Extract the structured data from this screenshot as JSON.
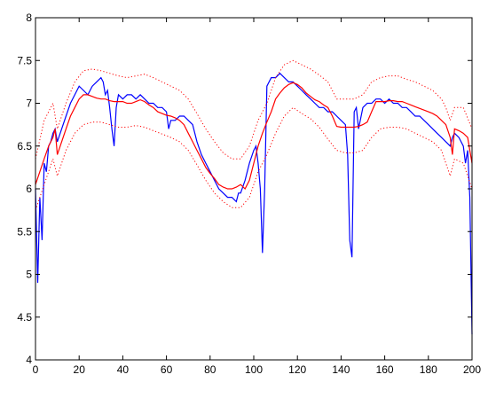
{
  "chart_data": {
    "type": "line",
    "title": "",
    "xlabel": "",
    "ylabel": "",
    "xlim": [
      0,
      200
    ],
    "ylim": [
      4,
      8
    ],
    "grid": false,
    "legend": "none",
    "x_ticks": [
      "0",
      "20",
      "40",
      "60",
      "80",
      "100",
      "120",
      "140",
      "160",
      "180",
      "200"
    ],
    "y_ticks": [
      "4",
      "4.5",
      "5",
      "5.5",
      "6",
      "6.5",
      "7",
      "7.5",
      "8"
    ],
    "series": [
      {
        "style": "solid",
        "color": "#0000ff",
        "x": [
          0,
          1,
          2,
          3,
          4,
          5,
          6,
          7,
          8,
          9,
          10,
          12,
          14,
          16,
          18,
          20,
          22,
          24,
          26,
          28,
          30,
          31,
          32,
          33,
          34,
          35,
          36,
          37,
          38,
          40,
          42,
          44,
          46,
          48,
          50,
          52,
          54,
          56,
          58,
          60,
          61,
          62,
          64,
          66,
          68,
          70,
          72,
          74,
          76,
          78,
          80,
          82,
          84,
          86,
          88,
          90,
          92,
          93,
          94,
          96,
          98,
          100,
          101,
          102,
          103,
          104,
          105,
          106,
          108,
          110,
          112,
          114,
          116,
          118,
          120,
          122,
          124,
          126,
          128,
          130,
          132,
          134,
          136,
          138,
          140,
          142,
          143,
          144,
          145,
          146,
          147,
          148,
          150,
          152,
          154,
          156,
          158,
          160,
          162,
          164,
          166,
          168,
          170,
          172,
          174,
          176,
          178,
          180,
          182,
          184,
          186,
          188,
          190,
          191,
          192,
          194,
          196,
          197,
          198,
          199,
          200
        ],
        "y": [
          6.0,
          4.9,
          5.9,
          5.4,
          6.3,
          6.2,
          6.5,
          6.55,
          6.65,
          6.7,
          6.55,
          6.7,
          6.85,
          7.0,
          7.1,
          7.2,
          7.15,
          7.1,
          7.2,
          7.25,
          7.3,
          7.25,
          7.1,
          7.15,
          6.95,
          6.7,
          6.5,
          6.95,
          7.1,
          7.05,
          7.1,
          7.1,
          7.05,
          7.1,
          7.05,
          7.0,
          7.0,
          6.95,
          6.95,
          6.9,
          6.7,
          6.8,
          6.8,
          6.85,
          6.85,
          6.8,
          6.75,
          6.55,
          6.4,
          6.3,
          6.2,
          6.1,
          6.0,
          5.95,
          5.9,
          5.9,
          5.85,
          5.95,
          5.95,
          6.1,
          6.3,
          6.45,
          6.5,
          6.3,
          6.0,
          5.25,
          6.0,
          7.2,
          7.3,
          7.3,
          7.35,
          7.3,
          7.25,
          7.25,
          7.2,
          7.15,
          7.1,
          7.05,
          7.0,
          6.95,
          6.95,
          6.9,
          6.9,
          6.85,
          6.8,
          6.75,
          6.4,
          5.4,
          5.2,
          6.9,
          6.95,
          6.7,
          6.95,
          7.0,
          7.0,
          7.05,
          7.05,
          7.0,
          7.05,
          7.0,
          7.0,
          6.95,
          6.95,
          6.9,
          6.85,
          6.85,
          6.8,
          6.75,
          6.7,
          6.65,
          6.6,
          6.55,
          6.5,
          6.6,
          6.65,
          6.6,
          6.5,
          6.3,
          6.45,
          5.9,
          4.3
        ]
      },
      {
        "style": "solid",
        "color": "#ff0000",
        "x": [
          0,
          2,
          4,
          6,
          8,
          9,
          10,
          12,
          14,
          16,
          18,
          20,
          22,
          24,
          26,
          28,
          30,
          32,
          34,
          36,
          38,
          40,
          42,
          44,
          46,
          48,
          50,
          52,
          54,
          56,
          58,
          60,
          62,
          64,
          66,
          68,
          70,
          72,
          74,
          76,
          78,
          80,
          82,
          84,
          86,
          88,
          90,
          92,
          94,
          96,
          98,
          100,
          102,
          104,
          106,
          108,
          110,
          112,
          114,
          116,
          118,
          120,
          122,
          124,
          126,
          128,
          130,
          132,
          134,
          136,
          138,
          140,
          142,
          144,
          146,
          148,
          150,
          152,
          154,
          156,
          158,
          160,
          162,
          164,
          166,
          168,
          170,
          172,
          174,
          176,
          178,
          180,
          182,
          184,
          186,
          188,
          190,
          191,
          192,
          194,
          196,
          198,
          199,
          200
        ],
        "y": [
          6.05,
          6.2,
          6.35,
          6.5,
          6.6,
          6.7,
          6.4,
          6.55,
          6.7,
          6.85,
          6.95,
          7.05,
          7.1,
          7.1,
          7.08,
          7.06,
          7.05,
          7.05,
          7.03,
          7.02,
          7.02,
          7.02,
          7.0,
          7.0,
          7.02,
          7.04,
          7.02,
          6.98,
          6.95,
          6.9,
          6.88,
          6.86,
          6.85,
          6.83,
          6.8,
          6.75,
          6.65,
          6.55,
          6.45,
          6.35,
          6.25,
          6.18,
          6.12,
          6.05,
          6.02,
          6.0,
          6.0,
          6.02,
          6.05,
          6.0,
          6.1,
          6.3,
          6.5,
          6.65,
          6.78,
          6.9,
          7.05,
          7.12,
          7.18,
          7.22,
          7.24,
          7.22,
          7.18,
          7.12,
          7.08,
          7.04,
          7.02,
          6.98,
          6.95,
          6.85,
          6.73,
          6.72,
          6.72,
          6.72,
          6.72,
          6.73,
          6.75,
          6.78,
          6.9,
          7.02,
          7.02,
          7.02,
          7.03,
          7.03,
          7.02,
          7.02,
          7.0,
          6.98,
          6.96,
          6.94,
          6.92,
          6.9,
          6.88,
          6.85,
          6.8,
          6.75,
          6.6,
          6.4,
          6.7,
          6.68,
          6.65,
          6.6,
          6.45,
          6.3
        ]
      },
      {
        "style": "dotted",
        "color": "#ff0000",
        "x": [
          0,
          4,
          8,
          10,
          14,
          18,
          22,
          26,
          30,
          34,
          38,
          42,
          46,
          50,
          54,
          58,
          62,
          66,
          70,
          74,
          78,
          82,
          86,
          90,
          94,
          98,
          102,
          106,
          110,
          114,
          118,
          122,
          126,
          130,
          134,
          138,
          142,
          146,
          150,
          154,
          158,
          162,
          166,
          170,
          174,
          178,
          182,
          186,
          188,
          190,
          192,
          196,
          200
        ],
        "y": [
          6.35,
          6.8,
          7.0,
          6.7,
          7.0,
          7.25,
          7.38,
          7.4,
          7.38,
          7.35,
          7.32,
          7.3,
          7.32,
          7.34,
          7.3,
          7.25,
          7.2,
          7.15,
          7.05,
          6.88,
          6.7,
          6.55,
          6.42,
          6.35,
          6.35,
          6.5,
          6.8,
          7.0,
          7.3,
          7.45,
          7.5,
          7.45,
          7.4,
          7.33,
          7.25,
          7.05,
          7.05,
          7.05,
          7.1,
          7.25,
          7.3,
          7.32,
          7.32,
          7.28,
          7.25,
          7.2,
          7.15,
          7.05,
          6.95,
          6.8,
          6.95,
          6.95,
          6.7
        ]
      },
      {
        "style": "dotted",
        "color": "#ff0000",
        "x": [
          0,
          4,
          8,
          10,
          14,
          18,
          22,
          26,
          30,
          34,
          38,
          42,
          46,
          50,
          54,
          58,
          62,
          66,
          70,
          74,
          78,
          82,
          86,
          90,
          94,
          98,
          102,
          106,
          110,
          114,
          118,
          122,
          126,
          130,
          134,
          138,
          142,
          146,
          150,
          154,
          158,
          162,
          166,
          170,
          174,
          178,
          182,
          186,
          188,
          190,
          192,
          196,
          200
        ],
        "y": [
          5.75,
          6.05,
          6.35,
          6.15,
          6.45,
          6.65,
          6.75,
          6.78,
          6.78,
          6.75,
          6.72,
          6.72,
          6.74,
          6.72,
          6.68,
          6.64,
          6.6,
          6.55,
          6.45,
          6.28,
          6.1,
          5.95,
          5.85,
          5.78,
          5.78,
          5.9,
          6.2,
          6.4,
          6.65,
          6.85,
          6.95,
          6.88,
          6.82,
          6.72,
          6.58,
          6.45,
          6.42,
          6.42,
          6.45,
          6.6,
          6.7,
          6.72,
          6.72,
          6.7,
          6.65,
          6.6,
          6.55,
          6.45,
          6.3,
          6.15,
          6.35,
          6.3,
          6.0
        ]
      }
    ]
  }
}
